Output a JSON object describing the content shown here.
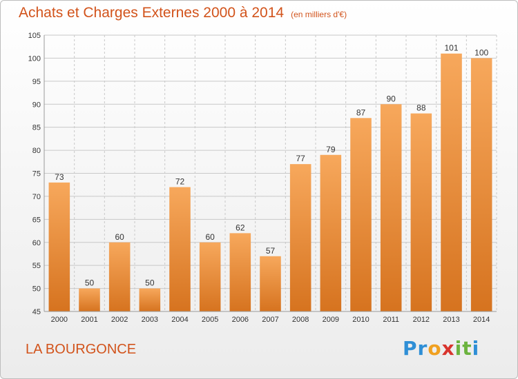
{
  "title": "Achats et Charges Externes 2000 à 2014",
  "subtitle": "(en milliers d'€)",
  "place": "LA BOURGONCE",
  "logo": {
    "letters": [
      "P",
      "r",
      "o",
      "x",
      "i",
      "t",
      "i"
    ],
    "colors": [
      "#2f8fd6",
      "#2f8fd6",
      "#f0a020",
      "#d8342d",
      "#6cb33f",
      "#6cb33f",
      "#2f8fd6"
    ]
  },
  "colors": {
    "bar_light": "#f7a85c",
    "bar_dark": "#d6731f",
    "grid": "#c8c8c8",
    "title": "#d2531b"
  },
  "chart_data": {
    "type": "bar",
    "title": "Achats et Charges Externes 2000 à 2014",
    "subtitle": "(en milliers d'€)",
    "categories": [
      "2000",
      "2001",
      "2002",
      "2003",
      "2004",
      "2005",
      "2006",
      "2007",
      "2008",
      "2009",
      "2010",
      "2011",
      "2012",
      "2013",
      "2014"
    ],
    "values": [
      73,
      50,
      60,
      50,
      72,
      60,
      62,
      57,
      77,
      79,
      87,
      90,
      88,
      101,
      100
    ],
    "ylim": [
      45,
      105
    ],
    "yticks": [
      45,
      50,
      55,
      60,
      65,
      70,
      75,
      80,
      85,
      90,
      95,
      100,
      105
    ],
    "grid": true,
    "data_labels": true
  }
}
